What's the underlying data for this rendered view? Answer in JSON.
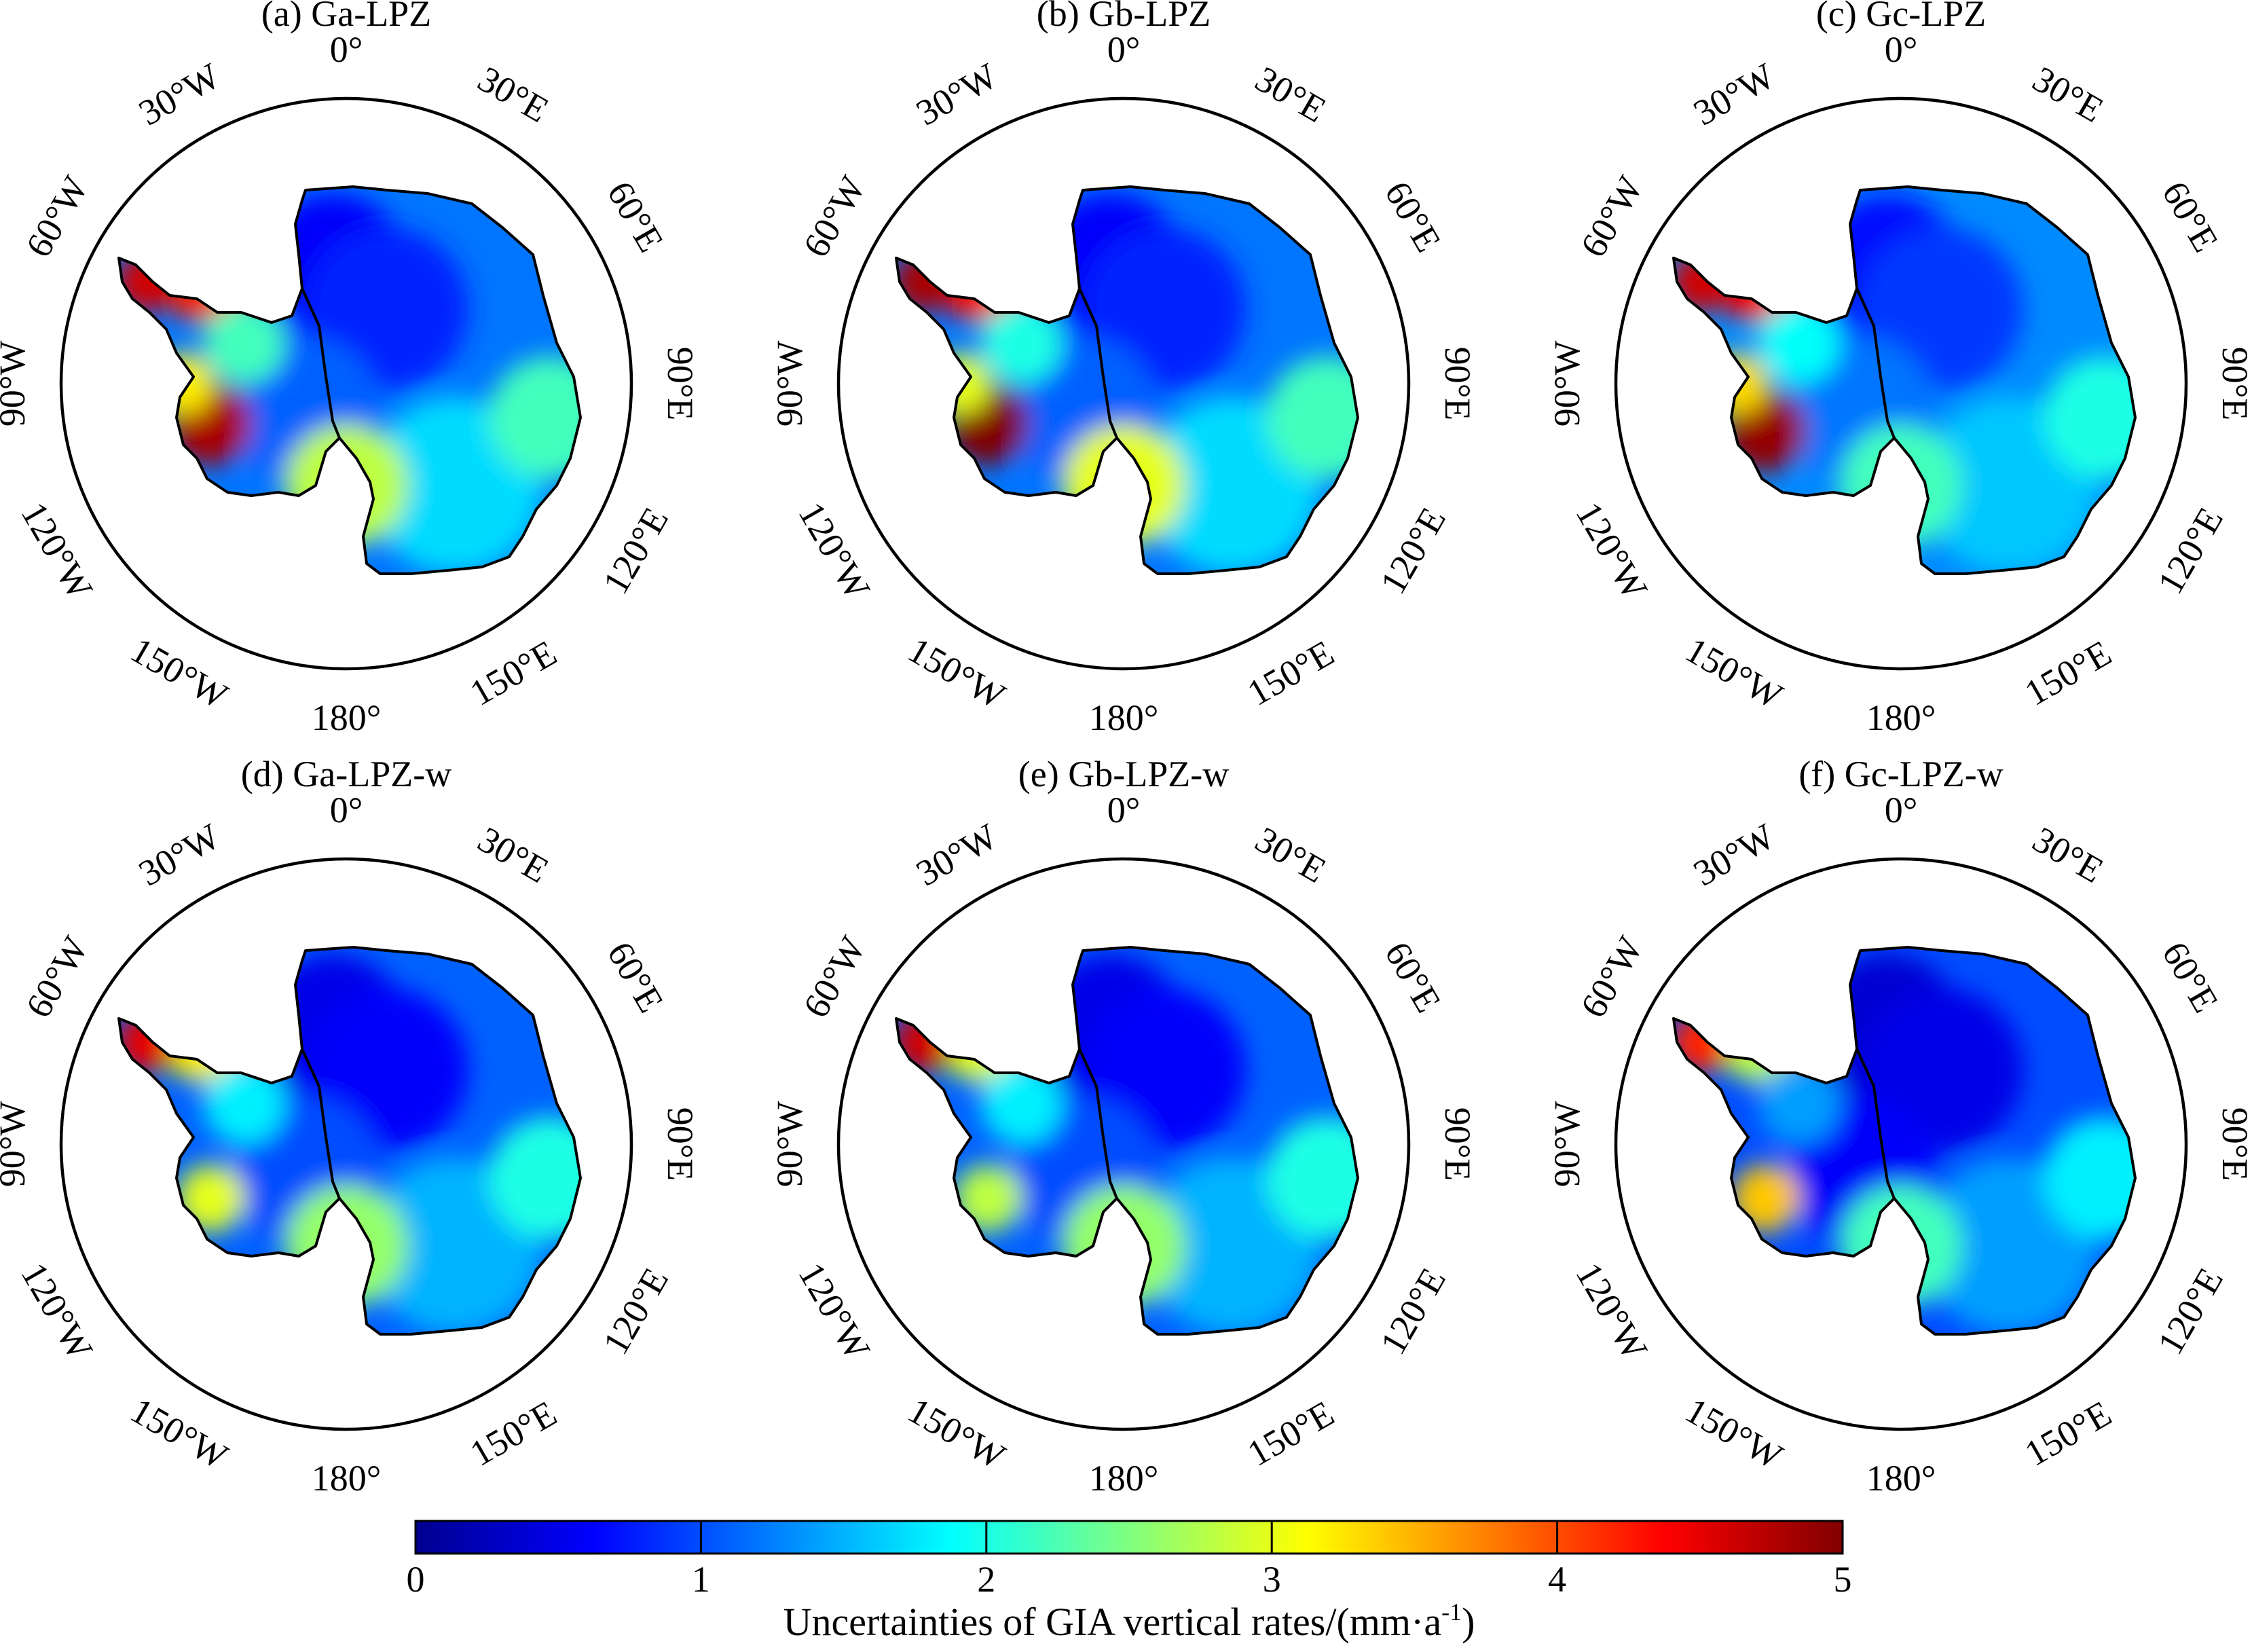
{
  "panels": [
    {
      "letter": "(a)",
      "title": "(a) Ga-LPZ",
      "max_region": "Antarctic Peninsula / Amundsen Sea",
      "peak": 5.0
    },
    {
      "letter": "(b)",
      "title": "(b) Gb-LPZ",
      "max_region": "Antarctic Peninsula / Amundsen Sea",
      "peak": 5.0
    },
    {
      "letter": "(c)",
      "title": "(c) Gc-LPZ",
      "max_region": "Antarctic Peninsula / Amundsen Sea",
      "peak": 5.0
    },
    {
      "letter": "(d)",
      "title": "(d) Ga-LPZ-w",
      "max_region": "Antarctic Peninsula",
      "peak": 4.8
    },
    {
      "letter": "(e)",
      "title": "(e) Gb-LPZ-w",
      "max_region": "Antarctic Peninsula",
      "peak": 4.8
    },
    {
      "letter": "(f)",
      "title": "(f) Gc-LPZ-w",
      "max_region": "Antarctic Peninsula",
      "peak": 4.5
    }
  ],
  "longitude_labels": [
    {
      "text": "0°",
      "lon": 0
    },
    {
      "text": "30°E",
      "lon": 30
    },
    {
      "text": "60°E",
      "lon": 60
    },
    {
      "text": "90°E",
      "lon": 90
    },
    {
      "text": "120°E",
      "lon": 120
    },
    {
      "text": "150°E",
      "lon": 150
    },
    {
      "text": "180°",
      "lon": 180
    },
    {
      "text": "150°W",
      "lon": -150
    },
    {
      "text": "120°W",
      "lon": -120
    },
    {
      "text": "90°W",
      "lon": -90
    },
    {
      "text": "60°W",
      "lon": -60
    },
    {
      "text": "30°W",
      "lon": -30
    }
  ],
  "colorbar": {
    "min": 0,
    "max": 5,
    "ticks": [
      "0",
      "1",
      "2",
      "3",
      "4",
      "5"
    ],
    "caption_main": "Uncertainties of GIA vertical rates/(mm·a",
    "caption_sup": "-1",
    "caption_close": ")",
    "colormap": "jet",
    "colors": [
      "#00008f",
      "#0000ff",
      "#0080ff",
      "#00ffff",
      "#80ff80",
      "#ffff00",
      "#ff8000",
      "#ff0000",
      "#800000"
    ]
  },
  "chart_data": {
    "type": "map",
    "projection": "south polar stereographic",
    "variable": "Uncertainties of GIA vertical rates",
    "unit": "mm·a^-1",
    "range": [
      0,
      5
    ],
    "panels": [
      "(a) Ga-LPZ",
      "(b) Gb-LPZ",
      "(c) Gc-LPZ",
      "(d) Ga-LPZ-w",
      "(e) Gb-LPZ-w",
      "(f) Gc-LPZ-w"
    ]
  }
}
